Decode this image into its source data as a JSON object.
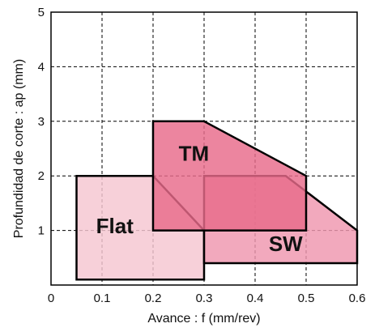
{
  "chart_data": {
    "type": "area",
    "xlabel": "Avance : f (mm/rev)",
    "ylabel": "Profundidad de corte : ap (mm)",
    "xlim": [
      0,
      0.6
    ],
    "ylim": [
      0,
      5
    ],
    "xticks": [
      "0",
      "0.1",
      "0.2",
      "0.3",
      "0.4",
      "0.5",
      "0.6"
    ],
    "yticks": [
      "1",
      "2",
      "3",
      "4",
      "5"
    ],
    "grid": true,
    "corner_note": "",
    "regions": [
      {
        "name": "Flat",
        "color": "#F5C6D1",
        "points": [
          [
            0.05,
            0.1
          ],
          [
            0.05,
            2.0
          ],
          [
            0.2,
            2.0
          ],
          [
            0.3,
            1.0
          ],
          [
            0.3,
            0.1
          ]
        ],
        "label_at": [
          0.125,
          0.95
        ]
      },
      {
        "name": "SW",
        "color": "#EF96AE",
        "points": [
          [
            0.3,
            0.4
          ],
          [
            0.3,
            2.0
          ],
          [
            0.46,
            2.0
          ],
          [
            0.6,
            1.0
          ],
          [
            0.6,
            0.4
          ]
        ],
        "label_at": [
          0.46,
          0.62
        ]
      },
      {
        "name": "TM",
        "color": "#E86A8A",
        "points": [
          [
            0.2,
            1.0
          ],
          [
            0.2,
            3.0
          ],
          [
            0.3,
            3.0
          ],
          [
            0.5,
            2.0
          ],
          [
            0.5,
            1.0
          ]
        ],
        "label_at": [
          0.28,
          2.28
        ]
      }
    ]
  }
}
